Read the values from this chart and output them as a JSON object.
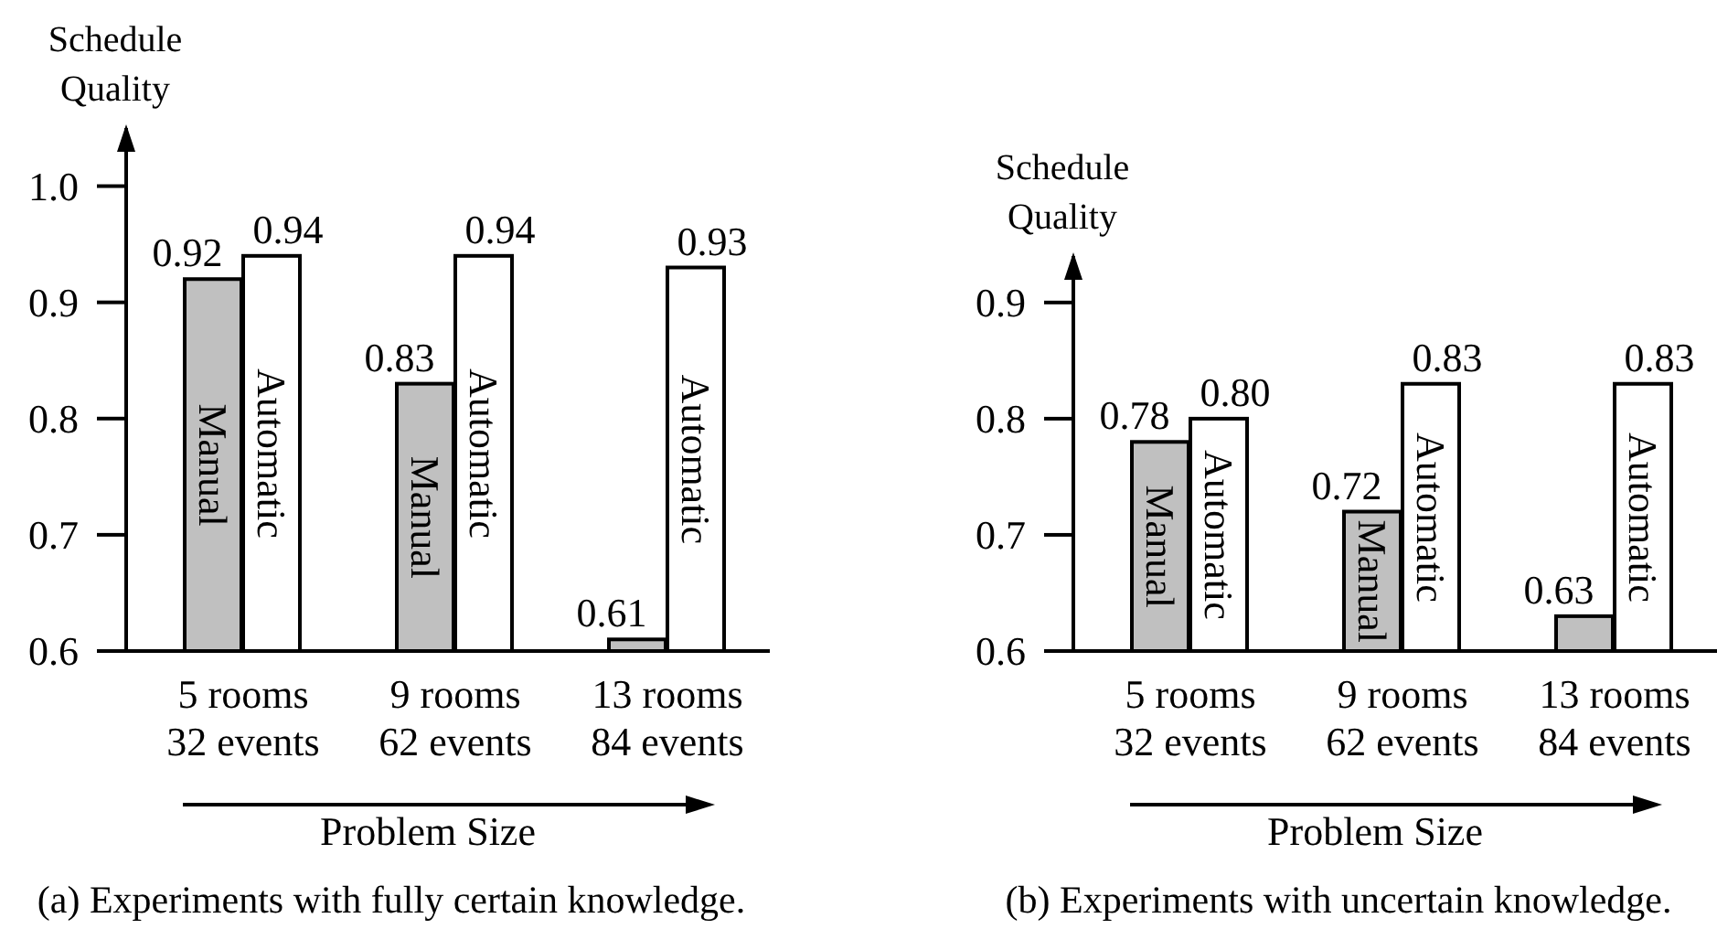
{
  "chart_data": [
    {
      "type": "bar",
      "ylabel": "Schedule Quality",
      "xlabel": "Problem Size",
      "annotations": [
        "(a) Experiments with fully certain knowledge."
      ],
      "categories": [
        "5 rooms\n32 events",
        "9 rooms\n62 events",
        "13 rooms\n84 events"
      ],
      "series": [
        {
          "name": "Manual",
          "color": "#c0c0c0",
          "values": [
            0.92,
            0.83,
            0.61
          ],
          "value_labels": [
            "0.92",
            "0.83",
            "0.61"
          ]
        },
        {
          "name": "Automatic",
          "color": "#ffffff",
          "values": [
            0.94,
            0.94,
            0.93
          ],
          "value_labels": [
            "0.94",
            "0.94",
            "0.93"
          ]
        }
      ],
      "ylim": [
        0.6,
        1.05
      ],
      "yticks": [
        0.6,
        0.7,
        0.8,
        0.9,
        {
          "value": 1,
          "label": "1.0"
        }
      ]
    },
    {
      "type": "bar",
      "ylabel": "Schedule Quality",
      "xlabel": "Problem Size",
      "annotations": [
        "(b) Experiments with uncertain knowledge."
      ],
      "categories": [
        "5 rooms\n32 events",
        "9 rooms\n62 events",
        "13 rooms\n84 events"
      ],
      "series": [
        {
          "name": "Manual",
          "color": "#c0c0c0",
          "values": [
            0.78,
            0.72,
            0.63
          ],
          "value_labels": [
            "0.78",
            "0.72",
            "0.63"
          ]
        },
        {
          "name": "Automatic",
          "color": "#ffffff",
          "values": [
            0.8,
            0.83,
            0.83
          ],
          "value_labels": [
            "0.80",
            "0.83",
            "0.83"
          ]
        }
      ],
      "ylim": [
        0.6,
        0.94
      ],
      "yticks": [
        0.6,
        0.7,
        0.8,
        0.9
      ]
    }
  ]
}
